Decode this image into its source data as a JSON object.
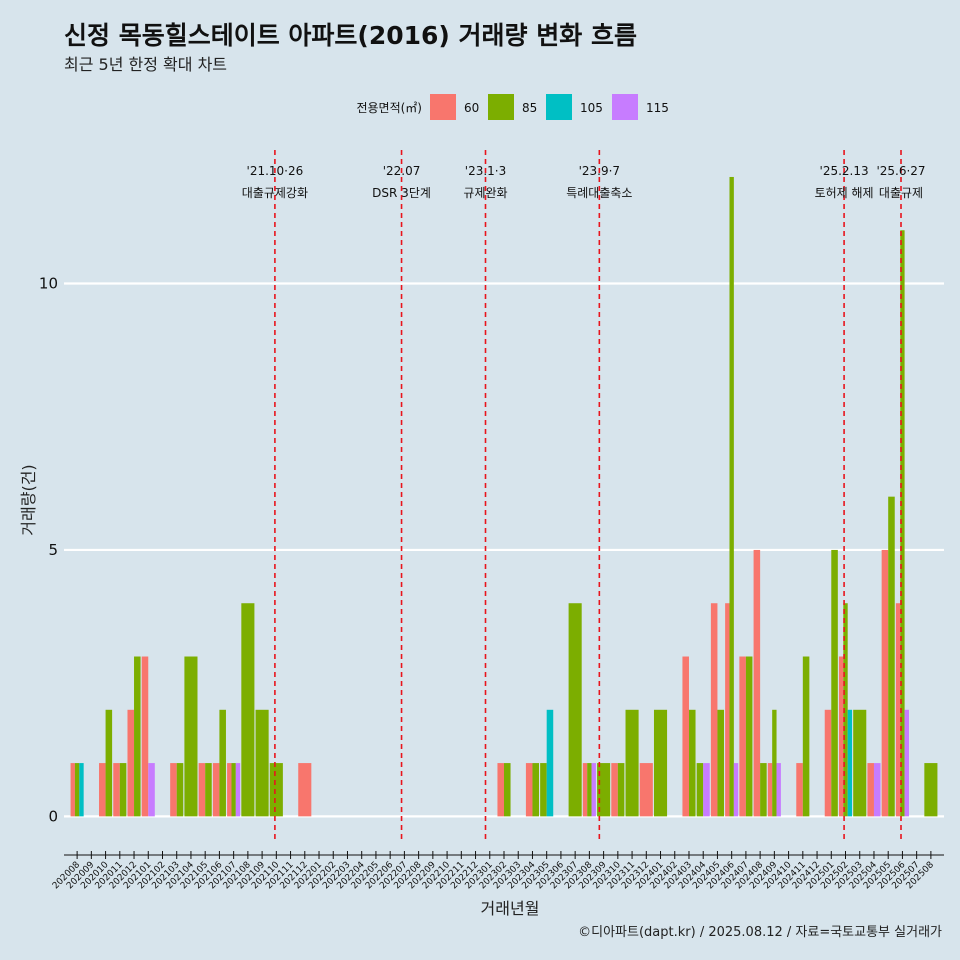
{
  "title": "신정 목동힐스테이트 아파트(2016) 거래량 변화 흐름",
  "subtitle": "최근 5년 한정 확대 차트",
  "caption": "©디아파트(dapt.kr) / 2025.08.12 / 자료=국토교통부 실거래가",
  "colors": {
    "background": "#d7e4ec",
    "grid": "#ffffff",
    "event_line": "#e8141c",
    "series": [
      "#f8766d",
      "#7cae00",
      "#00bfc4",
      "#c77cff"
    ]
  },
  "chart_data": {
    "type": "bar",
    "xlabel": "거래년월",
    "ylabel": "거래량(건)",
    "ylim": [
      -0.5,
      12.6
    ],
    "yticks": [
      0,
      5,
      10
    ],
    "grid": true,
    "legend": {
      "title": "전용면적(㎡)",
      "position": "top"
    },
    "categories": [
      "202008",
      "202009",
      "202010",
      "202011",
      "202012",
      "202101",
      "202102",
      "202103",
      "202104",
      "202105",
      "202106",
      "202107",
      "202108",
      "202109",
      "202110",
      "202111",
      "202112",
      "202201",
      "202202",
      "202203",
      "202204",
      "202205",
      "202206",
      "202207",
      "202208",
      "202209",
      "202210",
      "202211",
      "202212",
      "202301",
      "202302",
      "202303",
      "202304",
      "202305",
      "202306",
      "202307",
      "202308",
      "202309",
      "202310",
      "202311",
      "202312",
      "202401",
      "202402",
      "202403",
      "202404",
      "202405",
      "202406",
      "202407",
      "202408",
      "202409",
      "202410",
      "202411",
      "202412",
      "202501",
      "202502",
      "202503",
      "202504",
      "202505",
      "202506",
      "202507",
      "202508"
    ],
    "series": [
      {
        "name": "60",
        "values": [
          1,
          0,
          1,
          1,
          2,
          3,
          0,
          1,
          0,
          1,
          1,
          1,
          0,
          0,
          0,
          0,
          1,
          0,
          0,
          0,
          0,
          0,
          0,
          0,
          0,
          0,
          0,
          0,
          0,
          0,
          1,
          0,
          1,
          0,
          0,
          0,
          1,
          0,
          1,
          0,
          1,
          0,
          0,
          3,
          0,
          4,
          4,
          3,
          5,
          1,
          0,
          1,
          0,
          2,
          3,
          0,
          1,
          5,
          4,
          0,
          0
        ]
      },
      {
        "name": "85",
        "values": [
          1,
          0,
          2,
          1,
          3,
          0,
          0,
          1,
          3,
          1,
          2,
          1,
          4,
          2,
          1,
          0,
          0,
          0,
          0,
          0,
          0,
          0,
          0,
          0,
          0,
          0,
          0,
          0,
          0,
          0,
          1,
          0,
          1,
          1,
          0,
          4,
          1,
          1,
          1,
          2,
          0,
          2,
          0,
          2,
          1,
          2,
          12,
          3,
          1,
          2,
          0,
          3,
          0,
          5,
          4,
          2,
          0,
          6,
          11,
          0,
          1
        ]
      },
      {
        "name": "105",
        "values": [
          1,
          0,
          0,
          0,
          0,
          0,
          0,
          0,
          0,
          0,
          0,
          0,
          0,
          0,
          0,
          0,
          0,
          0,
          0,
          0,
          0,
          0,
          0,
          0,
          0,
          0,
          0,
          0,
          0,
          0,
          0,
          0,
          0,
          2,
          0,
          0,
          0,
          0,
          0,
          0,
          0,
          0,
          0,
          0,
          0,
          0,
          0,
          0,
          0,
          0,
          0,
          0,
          0,
          0,
          2,
          0,
          0,
          0,
          0,
          0,
          0
        ]
      },
      {
        "name": "115",
        "values": [
          0,
          0,
          0,
          0,
          0,
          1,
          0,
          0,
          0,
          0,
          0,
          1,
          0,
          0,
          0,
          0,
          0,
          0,
          0,
          0,
          0,
          0,
          0,
          0,
          0,
          0,
          0,
          0,
          0,
          0,
          0,
          0,
          0,
          0,
          0,
          0,
          1,
          0,
          0,
          0,
          0,
          0,
          0,
          0,
          1,
          0,
          1,
          0,
          0,
          1,
          0,
          0,
          0,
          0,
          0,
          0,
          1,
          0,
          2,
          0,
          0
        ]
      }
    ],
    "annotations": [
      {
        "x_index": 14.4,
        "date": "'21.10·26",
        "label": "대출규제강화"
      },
      {
        "x_index": 23.3,
        "date": "'22.07",
        "label": "DSR 3단계"
      },
      {
        "x_index": 29.2,
        "date": "'23.1·3",
        "label": "규제완화"
      },
      {
        "x_index": 37.2,
        "date": "'23.9·7",
        "label": "특례대출축소"
      },
      {
        "x_index": 54.4,
        "date": "'25.2.13",
        "label": "토허제 해제"
      },
      {
        "x_index": 58.4,
        "date": "'25.6·27",
        "label": "대출규제"
      }
    ]
  }
}
